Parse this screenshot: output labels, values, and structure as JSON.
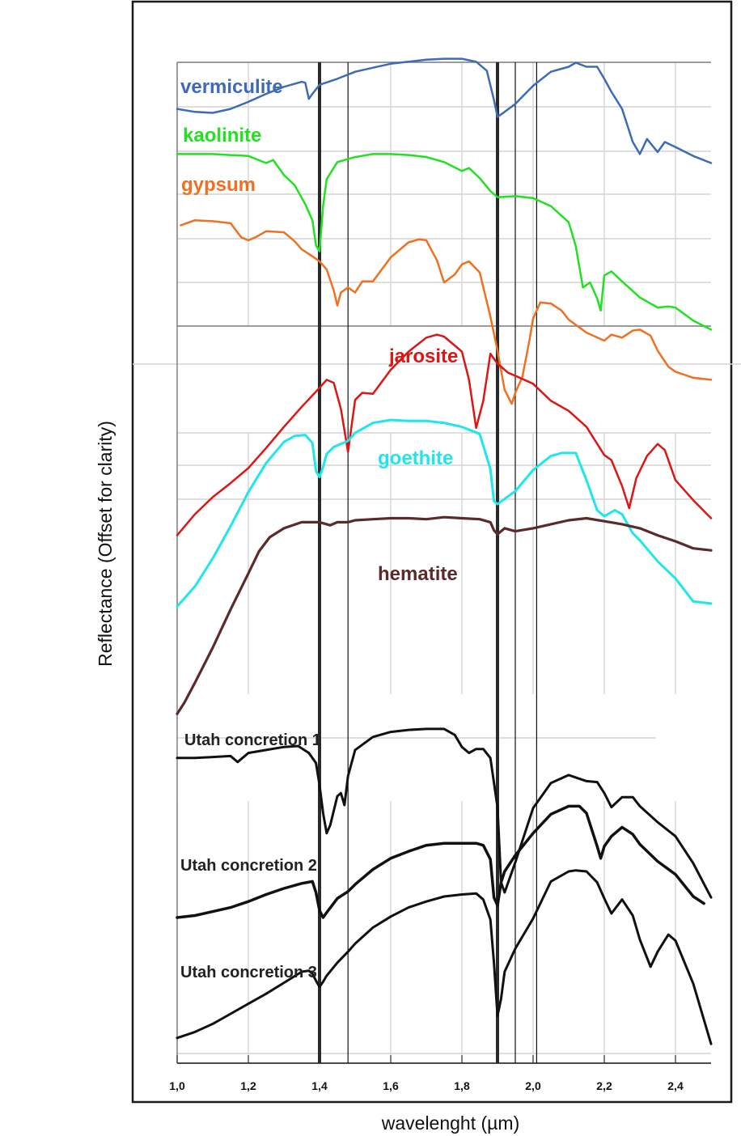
{
  "chart_data": {
    "type": "line",
    "title": "",
    "xlabel": "wavelenght (µm)",
    "ylabel": "Reflectance (Offset for clarity)",
    "xlim": [
      1.0,
      2.5
    ],
    "ylim": [
      0,
      100
    ],
    "grid": true,
    "legend": "inline labels",
    "x_ticks": [
      "1,0",
      "1,2",
      "1,4",
      "1,6",
      "1,8",
      "2,0",
      "2,2",
      "2,4"
    ],
    "x_tick_values": [
      1.0,
      1.2,
      1.4,
      1.6,
      1.8,
      2.0,
      2.2,
      2.4
    ],
    "reference_lines": {
      "thick": [
        1.4,
        1.9
      ],
      "thin": [
        1.48,
        1.95,
        2.01
      ]
    },
    "series": [
      {
        "name": "vermiculite",
        "color": "#3e6bb5",
        "width": 2.5,
        "x": [
          1.0,
          1.05,
          1.1,
          1.15,
          1.2,
          1.25,
          1.3,
          1.35,
          1.36,
          1.37,
          1.38,
          1.4,
          1.45,
          1.5,
          1.55,
          1.6,
          1.65,
          1.7,
          1.75,
          1.8,
          1.84,
          1.87,
          1.89,
          1.9,
          1.92,
          1.95,
          2.0,
          2.05,
          2.1,
          2.12,
          2.15,
          2.18,
          2.2,
          2.22,
          2.25,
          2.28,
          2.3,
          2.32,
          2.35,
          2.37,
          2.4,
          2.45,
          2.5
        ],
        "y": [
          95.6,
          95.3,
          95.2,
          95.6,
          96.3,
          97.1,
          97.8,
          98.3,
          98.2,
          96.6,
          97.1,
          98.0,
          98.6,
          99.3,
          99.7,
          100.1,
          100.3,
          100.5,
          100.6,
          100.6,
          100.3,
          99.4,
          96.5,
          94.8,
          95.3,
          96.1,
          97.9,
          99.3,
          99.8,
          100.2,
          99.8,
          99.8,
          98.6,
          97.3,
          95.6,
          92.3,
          91.1,
          92.6,
          91.3,
          92.3,
          91.8,
          90.9,
          90.2
        ]
      },
      {
        "name": "kaolinite",
        "color": "#22e022",
        "width": 2.5,
        "x": [
          1.0,
          1.05,
          1.1,
          1.15,
          1.2,
          1.25,
          1.27,
          1.3,
          1.33,
          1.36,
          1.38,
          1.39,
          1.4,
          1.41,
          1.42,
          1.45,
          1.5,
          1.55,
          1.6,
          1.65,
          1.7,
          1.75,
          1.8,
          1.82,
          1.85,
          1.88,
          1.9,
          1.95,
          2.0,
          2.05,
          2.1,
          2.12,
          2.14,
          2.16,
          2.18,
          2.19,
          2.2,
          2.22,
          2.25,
          2.3,
          2.35,
          2.38,
          2.4,
          2.45,
          2.5
        ],
        "y": [
          91.1,
          91.1,
          91.1,
          91.0,
          90.9,
          90.2,
          90.5,
          89.0,
          88.0,
          86.1,
          84.5,
          82.0,
          81.4,
          85.9,
          88.6,
          90.3,
          90.8,
          91.1,
          91.1,
          91.0,
          90.8,
          90.3,
          89.4,
          89.7,
          88.7,
          87.4,
          86.8,
          86.9,
          86.7,
          85.9,
          84.3,
          81.9,
          77.8,
          78.3,
          76.7,
          75.5,
          79.0,
          79.4,
          78.4,
          76.8,
          75.8,
          75.9,
          75.8,
          74.5,
          73.6
        ]
      },
      {
        "name": "gypsum",
        "color": "#ef7020",
        "width": 2.5,
        "x": [
          1.01,
          1.05,
          1.1,
          1.15,
          1.18,
          1.2,
          1.22,
          1.25,
          1.3,
          1.33,
          1.35,
          1.38,
          1.4,
          1.42,
          1.44,
          1.45,
          1.46,
          1.48,
          1.5,
          1.52,
          1.55,
          1.6,
          1.65,
          1.68,
          1.7,
          1.73,
          1.75,
          1.78,
          1.8,
          1.82,
          1.85,
          1.88,
          1.9,
          1.92,
          1.94,
          1.95,
          1.97,
          1.99,
          2.0,
          2.02,
          2.05,
          2.08,
          2.1,
          2.15,
          2.2,
          2.22,
          2.25,
          2.28,
          2.3,
          2.33,
          2.35,
          2.38,
          2.4,
          2.45,
          2.5
        ],
        "y": [
          84.0,
          84.5,
          84.4,
          84.2,
          82.8,
          82.5,
          82.8,
          83.4,
          83.3,
          82.4,
          81.6,
          80.9,
          80.4,
          79.6,
          77.5,
          76.0,
          77.3,
          77.8,
          77.3,
          78.4,
          78.4,
          80.8,
          82.3,
          82.6,
          82.5,
          80.5,
          78.3,
          79.1,
          80.1,
          80.4,
          79.3,
          74.9,
          71.5,
          67.6,
          66.2,
          67.3,
          68.9,
          72.6,
          74.7,
          76.3,
          76.2,
          75.5,
          74.6,
          73.3,
          72.5,
          73.1,
          72.8,
          73.5,
          73.6,
          73.0,
          71.5,
          69.9,
          69.4,
          68.8,
          68.6
        ]
      },
      {
        "name": "jarosite",
        "color": "#dd1515",
        "width": 2.5,
        "x": [
          1.0,
          1.05,
          1.1,
          1.15,
          1.2,
          1.25,
          1.3,
          1.35,
          1.4,
          1.42,
          1.44,
          1.46,
          1.48,
          1.5,
          1.52,
          1.55,
          1.6,
          1.65,
          1.7,
          1.73,
          1.75,
          1.8,
          1.82,
          1.84,
          1.86,
          1.88,
          1.9,
          1.93,
          1.95,
          2.0,
          2.05,
          2.1,
          2.15,
          2.2,
          2.22,
          2.25,
          2.27,
          2.29,
          2.32,
          2.35,
          2.37,
          2.4,
          2.45,
          2.5
        ],
        "y": [
          53.1,
          55.2,
          56.9,
          58.3,
          59.8,
          61.8,
          63.9,
          65.9,
          67.8,
          68.6,
          68.3,
          65.7,
          61.4,
          66.6,
          67.3,
          67.2,
          69.6,
          71.4,
          72.8,
          73.1,
          72.9,
          71.4,
          68.6,
          63.8,
          66.5,
          71.2,
          70.2,
          69.3,
          69.0,
          68.2,
          66.5,
          65.5,
          63.9,
          61.1,
          60.6,
          58.0,
          55.8,
          58.8,
          61.0,
          62.2,
          61.6,
          58.6,
          56.6,
          54.8
        ]
      },
      {
        "name": "goethite",
        "color": "#1ee6ec",
        "width": 3,
        "x": [
          1.0,
          1.05,
          1.1,
          1.15,
          1.2,
          1.25,
          1.3,
          1.33,
          1.36,
          1.38,
          1.39,
          1.4,
          1.41,
          1.42,
          1.44,
          1.48,
          1.5,
          1.55,
          1.6,
          1.65,
          1.7,
          1.75,
          1.8,
          1.85,
          1.88,
          1.89,
          1.9,
          1.95,
          2.0,
          2.05,
          2.08,
          2.12,
          2.15,
          2.18,
          2.2,
          2.23,
          2.25,
          2.28,
          2.3,
          2.35,
          2.4,
          2.45,
          2.5
        ],
        "y": [
          46.0,
          48.0,
          50.8,
          54.0,
          57.4,
          60.3,
          62.4,
          63.0,
          63.1,
          62.3,
          59.5,
          58.9,
          59.9,
          61.2,
          61.9,
          62.5,
          63.3,
          64.3,
          64.6,
          64.5,
          64.5,
          64.3,
          63.9,
          63.2,
          59.7,
          56.5,
          56.2,
          57.5,
          59.6,
          61.0,
          61.3,
          61.3,
          58.6,
          55.6,
          55.0,
          55.6,
          55.2,
          53.3,
          52.6,
          50.5,
          48.8,
          46.5,
          46.3
        ]
      },
      {
        "name": "hematite",
        "color": "#5b2b2b",
        "width": 3.2,
        "x": [
          1.0,
          1.02,
          1.05,
          1.1,
          1.15,
          1.2,
          1.23,
          1.26,
          1.3,
          1.35,
          1.4,
          1.43,
          1.45,
          1.48,
          1.5,
          1.55,
          1.6,
          1.65,
          1.7,
          1.75,
          1.8,
          1.85,
          1.88,
          1.89,
          1.9,
          1.92,
          1.95,
          2.0,
          2.05,
          2.1,
          2.15,
          2.2,
          2.25,
          2.3,
          2.35,
          2.4,
          2.45,
          2.5
        ],
        "y": [
          35.3,
          36.4,
          38.4,
          41.9,
          45.7,
          49.3,
          51.5,
          52.9,
          53.8,
          54.4,
          54.4,
          54.1,
          54.4,
          54.4,
          54.6,
          54.7,
          54.8,
          54.8,
          54.7,
          54.9,
          54.8,
          54.7,
          54.4,
          53.6,
          53.2,
          53.8,
          53.5,
          53.8,
          54.2,
          54.6,
          54.8,
          54.5,
          54.2,
          53.8,
          53.1,
          52.5,
          51.8,
          51.6
        ]
      },
      {
        "name": "Utah concretion 1",
        "color": "#111111",
        "width": 3,
        "x": [
          1.0,
          1.05,
          1.1,
          1.15,
          1.17,
          1.2,
          1.25,
          1.3,
          1.34,
          1.37,
          1.39,
          1.4,
          1.41,
          1.42,
          1.43,
          1.45,
          1.46,
          1.47,
          1.48,
          1.5,
          1.55,
          1.6,
          1.65,
          1.7,
          1.75,
          1.78,
          1.8,
          1.82,
          1.84,
          1.86,
          1.88,
          1.9,
          1.91,
          1.92,
          1.95,
          2.0,
          2.05,
          2.1,
          2.15,
          2.18,
          2.2,
          2.22,
          2.25,
          2.28,
          2.3,
          2.35,
          2.4,
          2.45,
          2.5
        ],
        "y": [
          30.9,
          30.9,
          31.0,
          31.1,
          30.5,
          31.4,
          31.7,
          32.0,
          32.1,
          31.4,
          30.4,
          28.2,
          25.4,
          23.4,
          24.2,
          27.1,
          27.4,
          26.2,
          29.1,
          31.7,
          33.0,
          33.5,
          33.7,
          33.8,
          33.8,
          33.2,
          32.0,
          31.4,
          31.8,
          31.8,
          30.9,
          26.0,
          18.5,
          17.5,
          20.5,
          25.9,
          28.4,
          29.2,
          28.6,
          28.5,
          27.4,
          26.0,
          27.0,
          27.0,
          26.1,
          24.5,
          23.1,
          20.4,
          17.0
        ]
      },
      {
        "name": "Utah concretion 2",
        "color": "#111111",
        "width": 3.5,
        "x": [
          1.0,
          1.05,
          1.1,
          1.15,
          1.2,
          1.25,
          1.3,
          1.35,
          1.38,
          1.39,
          1.4,
          1.41,
          1.42,
          1.45,
          1.48,
          1.5,
          1.55,
          1.6,
          1.65,
          1.7,
          1.75,
          1.8,
          1.84,
          1.86,
          1.88,
          1.89,
          1.9,
          1.91,
          1.92,
          1.95,
          2.0,
          2.05,
          2.1,
          2.13,
          2.15,
          2.18,
          2.19,
          2.2,
          2.22,
          2.25,
          2.28,
          2.3,
          2.35,
          2.4,
          2.45,
          2.48
        ],
        "y": [
          15.0,
          15.2,
          15.6,
          16.0,
          16.6,
          17.3,
          17.9,
          18.4,
          18.6,
          17.5,
          15.7,
          15.0,
          15.5,
          16.9,
          17.6,
          18.3,
          19.8,
          20.9,
          21.6,
          22.2,
          22.4,
          22.4,
          22.4,
          22.2,
          20.8,
          17.0,
          16.2,
          18.5,
          19.6,
          21.2,
          23.4,
          25.3,
          26.1,
          26.1,
          25.4,
          22.1,
          20.9,
          22.1,
          23.1,
          24.0,
          23.3,
          22.3,
          20.6,
          19.3,
          17.1,
          16.4
        ]
      },
      {
        "name": "Utah concretion 3",
        "color": "#111111",
        "width": 3,
        "x": [
          1.0,
          1.05,
          1.1,
          1.15,
          1.2,
          1.25,
          1.3,
          1.35,
          1.37,
          1.38,
          1.39,
          1.4,
          1.41,
          1.42,
          1.45,
          1.48,
          1.5,
          1.55,
          1.6,
          1.65,
          1.7,
          1.75,
          1.8,
          1.84,
          1.86,
          1.88,
          1.89,
          1.9,
          1.91,
          1.92,
          1.95,
          2.0,
          2.05,
          2.1,
          2.12,
          2.15,
          2.18,
          2.2,
          2.22,
          2.25,
          2.28,
          2.3,
          2.33,
          2.35,
          2.38,
          2.4,
          2.45,
          2.5
        ],
        "y": [
          3.0,
          3.6,
          4.4,
          5.4,
          6.4,
          7.4,
          8.5,
          9.6,
          9.7,
          9.4,
          8.7,
          8.1,
          8.6,
          9.2,
          10.5,
          11.6,
          12.4,
          14.0,
          15.1,
          16.0,
          16.6,
          17.1,
          17.3,
          17.4,
          16.8,
          14.8,
          10.5,
          5.2,
          6.9,
          9.6,
          11.9,
          14.9,
          18.6,
          19.6,
          19.7,
          19.6,
          18.5,
          16.9,
          15.4,
          16.8,
          15.2,
          12.8,
          10.1,
          11.6,
          13.3,
          12.7,
          8.4,
          2.4
        ]
      }
    ],
    "labels": [
      {
        "text": "vermiculite",
        "series": "vermiculite",
        "color": "#3e6bb5"
      },
      {
        "text": "kaolinite",
        "series": "kaolinite",
        "color": "#22e022"
      },
      {
        "text": "gypsum",
        "series": "gypsum",
        "color": "#ef7020"
      },
      {
        "text": "jarosite",
        "series": "jarosite",
        "color": "#dd1515"
      },
      {
        "text": "goethite",
        "series": "goethite",
        "color": "#1ee6ec"
      },
      {
        "text": "hematite",
        "series": "hematite",
        "color": "#5b2b2b"
      },
      {
        "text": "Utah concretion 1",
        "series": "Utah concretion 1",
        "color": "#222222"
      },
      {
        "text": "Utah concretion 2",
        "series": "Utah concretion 2",
        "color": "#222222"
      },
      {
        "text": "Utah concretion 3",
        "series": "Utah concretion 3",
        "color": "#222222"
      }
    ]
  }
}
